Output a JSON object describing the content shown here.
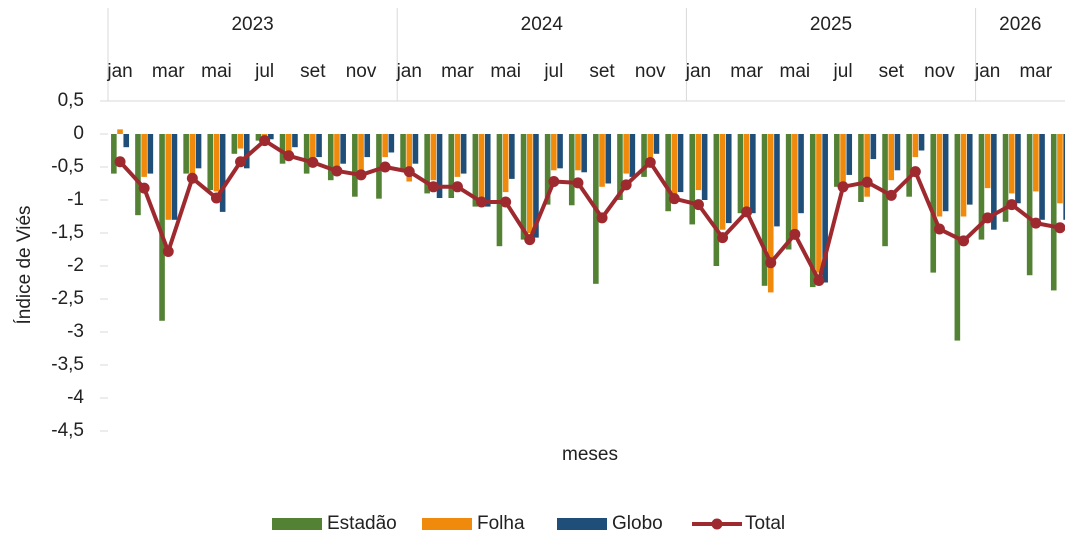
{
  "chart_data": {
    "type": "bar",
    "y_label": "Índice de Viés",
    "x_label": "meses",
    "x_groups": [
      {
        "label": "2023",
        "count": 12
      },
      {
        "label": "2024",
        "count": 12
      },
      {
        "label": "2025",
        "count": 12
      },
      {
        "label": "2026",
        "count": 4
      }
    ],
    "categories": [
      "jan",
      null,
      "mar",
      null,
      "mai",
      null,
      "jul",
      null,
      "set",
      null,
      "nov",
      null,
      "jan",
      null,
      "mar",
      null,
      "mai",
      null,
      "jul",
      null,
      "set",
      null,
      "nov",
      null,
      "jan",
      null,
      "mar",
      null,
      "mai",
      null,
      "jul",
      null,
      "set",
      null,
      "nov",
      null,
      "jan",
      null,
      "mar",
      null
    ],
    "ylim": [
      -4.5,
      0.5
    ],
    "yticks": [
      {
        "value": 0.5,
        "label": "0,5"
      },
      0,
      {
        "value": -0.5,
        "label": "-0,5"
      },
      -1,
      {
        "value": -1.5,
        "label": "-1,5"
      },
      -2,
      {
        "value": -2.5,
        "label": "-2,5"
      },
      -3,
      {
        "value": -3.5,
        "label": "-3,5"
      },
      -4,
      {
        "value": -4.5,
        "label": "-4,5"
      }
    ],
    "grid": false,
    "legend": "bottom",
    "series": [
      {
        "name": "Estadão",
        "color": "#548235",
        "type": "bar",
        "values": [
          -0.6,
          -1.23,
          -2.83,
          -0.6,
          -0.85,
          -0.3,
          -0.1,
          -0.45,
          -0.6,
          -0.7,
          -0.95,
          -0.98,
          -0.55,
          -0.9,
          -0.97,
          -1.1,
          -1.7,
          -1.6,
          -1.07,
          -1.08,
          -2.27,
          -1.0,
          -0.65,
          -1.17,
          -1.37,
          -2.0,
          -1.2,
          -2.3,
          -1.75,
          -2.32,
          -0.8,
          -1.03,
          -1.7,
          -0.95,
          -2.1,
          -3.13,
          -1.6,
          -1.33,
          -2.14,
          -2.37
        ]
      },
      {
        "name": "Folha",
        "color": "#f08a0c",
        "type": "bar",
        "values": [
          0.07,
          -0.65,
          -1.3,
          -0.62,
          -0.87,
          -0.22,
          -0.05,
          -0.35,
          -0.4,
          -0.5,
          -0.6,
          -0.35,
          -0.72,
          -0.7,
          -0.65,
          -1.0,
          -0.88,
          -1.5,
          -0.55,
          -0.55,
          -0.8,
          -0.6,
          -0.35,
          -0.95,
          -0.85,
          -1.45,
          -1.2,
          -2.4,
          -1.5,
          -2.1,
          -0.75,
          -0.95,
          -0.7,
          -0.35,
          -1.25,
          -1.25,
          -0.82,
          -0.9,
          -0.87,
          -1.05
        ]
      },
      {
        "name": "Globo",
        "color": "#1f4e79",
        "type": "bar",
        "values": [
          -0.2,
          -0.6,
          -1.3,
          -0.52,
          -1.18,
          -0.52,
          -0.08,
          -0.2,
          -0.35,
          -0.45,
          -0.35,
          -0.28,
          -0.45,
          -0.97,
          -0.6,
          -1.1,
          -0.68,
          -1.57,
          -0.52,
          -0.58,
          -0.75,
          -0.65,
          -0.3,
          -0.88,
          -1.0,
          -1.35,
          -1.2,
          -1.4,
          -1.2,
          -2.25,
          -0.62,
          -0.38,
          -0.55,
          -0.25,
          -1.17,
          -1.07,
          -1.45,
          -1.05,
          -1.3,
          -1.3
        ]
      },
      {
        "name": "Total",
        "color": "#9e2a2f",
        "type": "line",
        "values": [
          -0.42,
          -0.82,
          -1.78,
          -0.67,
          -0.97,
          -0.42,
          -0.1,
          -0.33,
          -0.43,
          -0.56,
          -0.62,
          -0.5,
          -0.57,
          -0.8,
          -0.8,
          -1.03,
          -1.03,
          -1.6,
          -0.72,
          -0.74,
          -1.27,
          -0.77,
          -0.43,
          -0.98,
          -1.07,
          -1.57,
          -1.18,
          -1.95,
          -1.52,
          -2.22,
          -0.8,
          -0.73,
          -0.93,
          -0.57,
          -1.44,
          -1.62,
          -1.27,
          -1.07,
          -1.35,
          -1.42
        ]
      }
    ]
  }
}
